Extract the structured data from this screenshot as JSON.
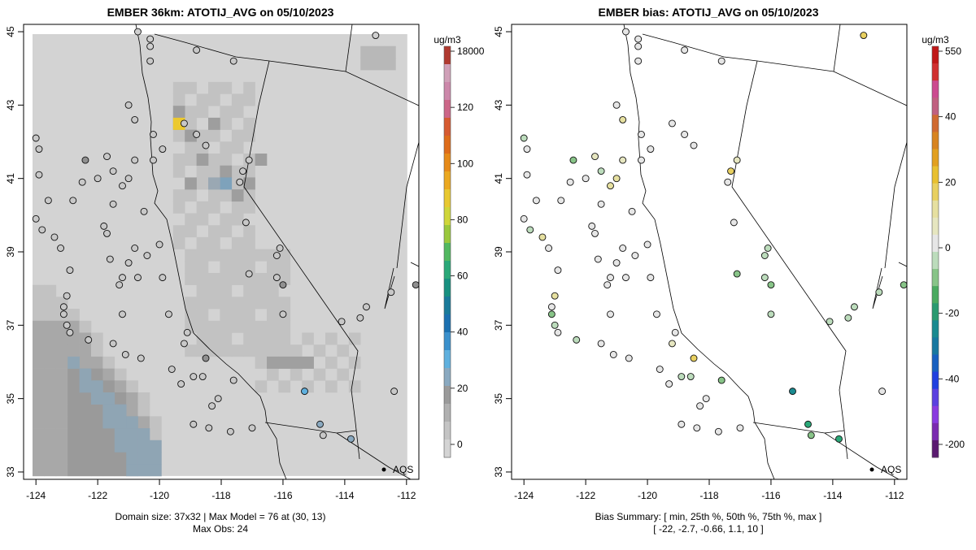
{
  "left_panel": {
    "title": "EMBER 36km: ATOTIJ_AVG on 05/10/2023",
    "colorbar_unit": "ug/m3",
    "colorbar_ticks": [
      "18000",
      "120",
      "100",
      "80",
      "60",
      "40",
      "20",
      "0"
    ],
    "colorbar_colors": [
      "#d4d4d4",
      "#c4c4c4",
      "#b0b0b0",
      "#9a9a9a",
      "#8aa9c0",
      "#5fb0de",
      "#3a90cc",
      "#1b70b0",
      "#1a7a9a",
      "#189080",
      "#2aa878",
      "#52b860",
      "#9ac83c",
      "#cfd63a",
      "#e8c830",
      "#eba820",
      "#e68a18",
      "#de6c1a",
      "#d65a30",
      "#cc6688",
      "#cc88aa",
      "#d0a0b8",
      "#b03a30"
    ],
    "footer_line1": "Domain size: 37x32 | Max Model = 76 at (30, 13)",
    "footer_line2": "Max Obs: 24",
    "legend_label": "AQS"
  },
  "right_panel": {
    "title": "EMBER bias: ATOTIJ_AVG on 05/10/2023",
    "colorbar_unit": "ug/m3",
    "colorbar_ticks": [
      "550",
      "40",
      "20",
      "0",
      "-20",
      "-40",
      "-200"
    ],
    "colorbar_colors": [
      "#5a1a70",
      "#7a2ab0",
      "#8a3ae0",
      "#5a40e0",
      "#2040e0",
      "#1860c0",
      "#1878a0",
      "#1a8a90",
      "#2a9a70",
      "#4aaa60",
      "#88c488",
      "#bcdcbc",
      "#e6e6e6",
      "#e6e6c0",
      "#e6e0a0",
      "#e8d060",
      "#e8c030",
      "#e2a020",
      "#d88420",
      "#d06a30",
      "#c06080",
      "#cc4a90",
      "#d03030",
      "#c01818"
    ],
    "footer_line1": "Bias Summary: [ min, 25th %, 50th %, 75th %, max ]",
    "footer_line2": "[ -22,   -2.7,   -0.66,   1.1,   10 ]",
    "legend_label": "AQS"
  },
  "axes": {
    "x_ticks": [
      "-124",
      "-122",
      "-120",
      "-118",
      "-116",
      "-114",
      "-112"
    ],
    "y_ticks": [
      "33",
      "35",
      "37",
      "39",
      "41",
      "43",
      "45"
    ],
    "lon_range": [
      -124.4,
      -111.6
    ],
    "lat_range": [
      32.8,
      45.2
    ]
  },
  "sites": [
    {
      "lon": -120.7,
      "lat": 45.0,
      "obs": "#d0d0d0",
      "bias": "#e6e6e6"
    },
    {
      "lon": -120.3,
      "lat": 44.8,
      "obs": "#d0d0d0",
      "bias": "#e6e6e6"
    },
    {
      "lon": -120.3,
      "lat": 44.6,
      "obs": "#d0d0d0",
      "bias": "#e6e6e6"
    },
    {
      "lon": -120.3,
      "lat": 44.2,
      "obs": "#c8c8c8",
      "bias": "#e6e6e6"
    },
    {
      "lon": -118.8,
      "lat": 44.5,
      "obs": "#c8c8c8",
      "bias": "#e6e6e6"
    },
    {
      "lon": -117.6,
      "lat": 44.2,
      "obs": "#c8c8c8",
      "bias": "#e6e6e6"
    },
    {
      "lon": -113.0,
      "lat": 44.9,
      "obs": "#d0d0d0",
      "bias": "#e8d060"
    },
    {
      "lon": -121.0,
      "lat": 43.0,
      "obs": "#c8c8c8",
      "bias": "#e6e6e6"
    },
    {
      "lon": -120.8,
      "lat": 42.6,
      "obs": "#c8c8c8",
      "bias": "#e6e0a0"
    },
    {
      "lon": -120.2,
      "lat": 42.2,
      "obs": "#c8c8c8",
      "bias": "#e6e6e6"
    },
    {
      "lon": -119.2,
      "lat": 42.5,
      "obs": "#c8c8c8",
      "bias": "#e6e6e6"
    },
    {
      "lon": -118.8,
      "lat": 42.2,
      "obs": "#c8c8c8",
      "bias": "#e6e6e6"
    },
    {
      "lon": -119.9,
      "lat": 41.8,
      "obs": "#c8c8c8",
      "bias": "#e6e6e6"
    },
    {
      "lon": -118.5,
      "lat": 41.9,
      "obs": "#c8c8c8",
      "bias": "#e6e6e6"
    },
    {
      "lon": -124.0,
      "lat": 42.1,
      "obs": "#c8c8c8",
      "bias": "#bcdcbc"
    },
    {
      "lon": -123.9,
      "lat": 41.8,
      "obs": "#c8c8c8",
      "bias": "#e6e6e6"
    },
    {
      "lon": -122.4,
      "lat": 41.5,
      "obs": "#909090",
      "bias": "#88c488"
    },
    {
      "lon": -121.7,
      "lat": 41.6,
      "obs": "#c8c8c8",
      "bias": "#e6e6c0"
    },
    {
      "lon": -120.8,
      "lat": 41.5,
      "obs": "#c8c8c8",
      "bias": "#e6e6c0"
    },
    {
      "lon": -121.0,
      "lat": 41.0,
      "obs": "#c8c8c8",
      "bias": "#e6e0a0"
    },
    {
      "lon": -121.5,
      "lat": 41.2,
      "obs": "#c8c8c8",
      "bias": "#bcdcbc"
    },
    {
      "lon": -121.2,
      "lat": 40.8,
      "obs": "#c8c8c8",
      "bias": "#e6e0a0"
    },
    {
      "lon": -122.0,
      "lat": 41.0,
      "obs": "#c8c8c8",
      "bias": "#e6e6e6"
    },
    {
      "lon": -122.5,
      "lat": 40.9,
      "obs": "#c8c8c8",
      "bias": "#e6e6e6"
    },
    {
      "lon": -123.9,
      "lat": 41.1,
      "obs": "#c8c8c8",
      "bias": "#e6e6e6"
    },
    {
      "lon": -120.2,
      "lat": 41.5,
      "obs": "#c8c8c8",
      "bias": "#e6e6e6"
    },
    {
      "lon": -117.1,
      "lat": 41.5,
      "obs": "#c8c8c8",
      "bias": "#e6e6c0"
    },
    {
      "lon": -117.3,
      "lat": 41.2,
      "obs": "#c8c8c8",
      "bias": "#e8d060"
    },
    {
      "lon": -117.4,
      "lat": 40.9,
      "obs": "#c8c8c8",
      "bias": "#e6e6e6"
    },
    {
      "lon": -123.6,
      "lat": 40.4,
      "obs": "#c8c8c8",
      "bias": "#e6e6e6"
    },
    {
      "lon": -122.8,
      "lat": 40.4,
      "obs": "#c8c8c8",
      "bias": "#e6e6e6"
    },
    {
      "lon": -121.5,
      "lat": 40.3,
      "obs": "#c8c8c8",
      "bias": "#e6e6e6"
    },
    {
      "lon": -120.5,
      "lat": 40.1,
      "obs": "#c8c8c8",
      "bias": "#e6e6e6"
    },
    {
      "lon": -124.0,
      "lat": 39.9,
      "obs": "#c8c8c8",
      "bias": "#e6e6e6"
    },
    {
      "lon": -123.8,
      "lat": 39.6,
      "obs": "#c8c8c8",
      "bias": "#bcdcbc"
    },
    {
      "lon": -123.4,
      "lat": 39.4,
      "obs": "#c8c8c8",
      "bias": "#e6e0a0"
    },
    {
      "lon": -123.2,
      "lat": 39.1,
      "obs": "#c8c8c8",
      "bias": "#e6e6e6"
    },
    {
      "lon": -121.8,
      "lat": 39.7,
      "obs": "#c8c8c8",
      "bias": "#e6e6e6"
    },
    {
      "lon": -121.7,
      "lat": 39.5,
      "obs": "#c8c8c8",
      "bias": "#e6e6e6"
    },
    {
      "lon": -120.8,
      "lat": 39.1,
      "obs": "#c8c8c8",
      "bias": "#e6e6e6"
    },
    {
      "lon": -120.4,
      "lat": 38.9,
      "obs": "#c8c8c8",
      "bias": "#e6e6e6"
    },
    {
      "lon": -120.0,
      "lat": 39.2,
      "obs": "#c8c8c8",
      "bias": "#e6e6e6"
    },
    {
      "lon": -117.2,
      "lat": 39.8,
      "obs": "#c8c8c8",
      "bias": "#e6e6e6"
    },
    {
      "lon": -116.1,
      "lat": 39.1,
      "obs": "#c8c8c8",
      "bias": "#bcdcbc"
    },
    {
      "lon": -116.2,
      "lat": 38.9,
      "obs": "#c8c8c8",
      "bias": "#bcdcbc"
    },
    {
      "lon": -121.6,
      "lat": 38.8,
      "obs": "#c8c8c8",
      "bias": "#e6e6e6"
    },
    {
      "lon": -121.0,
      "lat": 38.7,
      "obs": "#c8c8c8",
      "bias": "#e6e6e6"
    },
    {
      "lon": -122.9,
      "lat": 38.5,
      "obs": "#c8c8c8",
      "bias": "#e6e6e6"
    },
    {
      "lon": -121.2,
      "lat": 38.3,
      "obs": "#c8c8c8",
      "bias": "#e6e6e6"
    },
    {
      "lon": -121.3,
      "lat": 38.1,
      "obs": "#c8c8c8",
      "bias": "#e6e6e6"
    },
    {
      "lon": -120.7,
      "lat": 38.3,
      "obs": "#c8c8c8",
      "bias": "#e6e6e6"
    },
    {
      "lon": -119.9,
      "lat": 38.3,
      "obs": "#c8c8c8",
      "bias": "#e6e6e6"
    },
    {
      "lon": -117.1,
      "lat": 38.4,
      "obs": "#c8c8c8",
      "bias": "#88c488"
    },
    {
      "lon": -116.2,
      "lat": 38.3,
      "obs": "#c8c8c8",
      "bias": "#bcdcbc"
    },
    {
      "lon": -116.0,
      "lat": 38.1,
      "obs": "#909090",
      "bias": "#88c488"
    },
    {
      "lon": -123.0,
      "lat": 37.8,
      "obs": "#c8c8c8",
      "bias": "#e6e0a0"
    },
    {
      "lon": -123.1,
      "lat": 37.5,
      "obs": "#c8c8c8",
      "bias": "#e6e6e6"
    },
    {
      "lon": -123.1,
      "lat": 37.3,
      "obs": "#c8c8c8",
      "bias": "#88c488"
    },
    {
      "lon": -123.0,
      "lat": 37.0,
      "obs": "#c8c8c8",
      "bias": "#bcdcbc"
    },
    {
      "lon": -122.9,
      "lat": 36.8,
      "obs": "#c8c8c8",
      "bias": "#e6e6e6"
    },
    {
      "lon": -121.2,
      "lat": 37.3,
      "obs": "#c8c8c8",
      "bias": "#e6e6e6"
    },
    {
      "lon": -119.7,
      "lat": 37.3,
      "obs": "#c8c8c8",
      "bias": "#e6e6e6"
    },
    {
      "lon": -119.1,
      "lat": 36.8,
      "obs": "#c8c8c8",
      "bias": "#e6e6e6"
    },
    {
      "lon": -119.2,
      "lat": 36.5,
      "obs": "#c8c8c8",
      "bias": "#e6e6c0"
    },
    {
      "lon": -116.0,
      "lat": 37.3,
      "obs": "#c8c8c8",
      "bias": "#bcdcbc"
    },
    {
      "lon": -113.3,
      "lat": 37.5,
      "obs": "#c8c8c8",
      "bias": "#bcdcbc"
    },
    {
      "lon": -113.5,
      "lat": 37.2,
      "obs": "#c8c8c8",
      "bias": "#bcdcbc"
    },
    {
      "lon": -114.1,
      "lat": 37.1,
      "obs": "#c8c8c8",
      "bias": "#bcdcbc"
    },
    {
      "lon": -112.5,
      "lat": 37.9,
      "obs": "#c8c8c8",
      "bias": "#bcdcbc"
    },
    {
      "lon": -111.7,
      "lat": 38.1,
      "obs": "#909090",
      "bias": "#88c488"
    },
    {
      "lon": -122.3,
      "lat": 36.6,
      "obs": "#c8c8c8",
      "bias": "#bcdcbc"
    },
    {
      "lon": -121.5,
      "lat": 36.5,
      "obs": "#c8c8c8",
      "bias": "#e6e6e6"
    },
    {
      "lon": -121.1,
      "lat": 36.2,
      "obs": "#c8c8c8",
      "bias": "#e6e6e6"
    },
    {
      "lon": -120.6,
      "lat": 36.1,
      "obs": "#c8c8c8",
      "bias": "#e6e6e6"
    },
    {
      "lon": -118.5,
      "lat": 36.1,
      "obs": "#909090",
      "bias": "#e8d060"
    },
    {
      "lon": -119.6,
      "lat": 35.8,
      "obs": "#c8c8c8",
      "bias": "#e6e6e6"
    },
    {
      "lon": -118.9,
      "lat": 35.6,
      "obs": "#c8c8c8",
      "bias": "#bcdcbc"
    },
    {
      "lon": -118.6,
      "lat": 35.6,
      "obs": "#c8c8c8",
      "bias": "#bcdcbc"
    },
    {
      "lon": -119.3,
      "lat": 35.4,
      "obs": "#c8c8c8",
      "bias": "#e6e6e6"
    },
    {
      "lon": -118.1,
      "lat": 35.0,
      "obs": "#c8c8c8",
      "bias": "#e6e6e6"
    },
    {
      "lon": -118.3,
      "lat": 34.8,
      "obs": "#c8c8c8",
      "bias": "#e6e6e6"
    },
    {
      "lon": -117.6,
      "lat": 35.5,
      "obs": "#c8c8c8",
      "bias": "#88c488"
    },
    {
      "lon": -115.3,
      "lat": 35.2,
      "obs": "#5fb0de",
      "bias": "#1a8a90"
    },
    {
      "lon": -114.8,
      "lat": 34.3,
      "obs": "#8aa9c0",
      "bias": "#2aa878"
    },
    {
      "lon": -114.7,
      "lat": 34.0,
      "obs": "#c8c8c8",
      "bias": "#88c488"
    },
    {
      "lon": -113.8,
      "lat": 33.9,
      "obs": "#8aa9c0",
      "bias": "#2aa878"
    },
    {
      "lon": -118.9,
      "lat": 34.3,
      "obs": "#c8c8c8",
      "bias": "#e6e6e6"
    },
    {
      "lon": -118.4,
      "lat": 34.2,
      "obs": "#c8c8c8",
      "bias": "#e6e6e6"
    },
    {
      "lon": -117.7,
      "lat": 34.1,
      "obs": "#c8c8c8",
      "bias": "#e6e6e6"
    },
    {
      "lon": -117.0,
      "lat": 34.2,
      "obs": "#c8c8c8",
      "bias": "#e6e6e6"
    },
    {
      "lon": -112.4,
      "lat": 35.2,
      "obs": "#c8c8c8",
      "bias": "#e6e6e6"
    }
  ]
}
